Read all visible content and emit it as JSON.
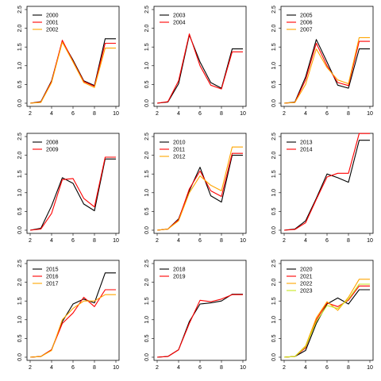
{
  "colors": {
    "line": [
      "#000000",
      "#ff0000",
      "#ffa500",
      "#c8e61e"
    ]
  },
  "chart_data": [
    {
      "type": "line",
      "title": "",
      "xlabel": "",
      "ylabel": "",
      "xlim": [
        2,
        10
      ],
      "ylim": [
        0,
        2.5
      ],
      "x_ticks": [
        2,
        4,
        6,
        8,
        10
      ],
      "y_ticks": [
        0.0,
        0.5,
        1.0,
        1.5,
        2.0,
        2.5
      ],
      "legend": "top-left",
      "grid": false,
      "x": [
        2,
        3,
        4,
        5,
        6,
        7,
        8,
        9,
        10
      ],
      "series": [
        {
          "name": "2000",
          "values": [
            0.0,
            0.04,
            0.6,
            1.65,
            1.15,
            0.6,
            0.47,
            1.72,
            1.72
          ]
        },
        {
          "name": "2001",
          "values": [
            0.0,
            0.03,
            0.58,
            1.68,
            1.12,
            0.58,
            0.45,
            1.6,
            1.6
          ]
        },
        {
          "name": "2002",
          "values": [
            0.0,
            0.02,
            0.55,
            1.63,
            1.1,
            0.55,
            0.42,
            1.47,
            1.47
          ]
        }
      ]
    },
    {
      "type": "line",
      "title": "",
      "xlabel": "",
      "ylabel": "",
      "xlim": [
        2,
        10
      ],
      "ylim": [
        0,
        2.5
      ],
      "x_ticks": [
        2,
        4,
        6,
        8,
        10
      ],
      "y_ticks": [
        0.0,
        0.5,
        1.0,
        1.5,
        2.0,
        2.5
      ],
      "legend": "top-left",
      "grid": false,
      "x": [
        2,
        3,
        4,
        5,
        6,
        7,
        8,
        9,
        10
      ],
      "series": [
        {
          "name": "2003",
          "values": [
            0.0,
            0.03,
            0.52,
            1.82,
            1.1,
            0.55,
            0.4,
            1.45,
            1.45
          ]
        },
        {
          "name": "2004",
          "values": [
            0.0,
            0.04,
            0.6,
            1.85,
            1.0,
            0.48,
            0.38,
            1.37,
            1.37
          ]
        }
      ]
    },
    {
      "type": "line",
      "title": "",
      "xlabel": "",
      "ylabel": "",
      "xlim": [
        2,
        10
      ],
      "ylim": [
        0,
        2.5
      ],
      "x_ticks": [
        2,
        4,
        6,
        8,
        10
      ],
      "y_ticks": [
        0.0,
        0.5,
        1.0,
        1.5,
        2.0,
        2.5
      ],
      "legend": "top-left",
      "grid": false,
      "x": [
        2,
        3,
        4,
        5,
        6,
        7,
        8,
        9,
        10
      ],
      "series": [
        {
          "name": "2005",
          "values": [
            0.0,
            0.03,
            0.7,
            1.7,
            1.1,
            0.48,
            0.4,
            1.45,
            1.45
          ]
        },
        {
          "name": "2006",
          "values": [
            0.0,
            0.02,
            0.62,
            1.6,
            1.0,
            0.55,
            0.47,
            1.65,
            1.65
          ]
        },
        {
          "name": "2007",
          "values": [
            0.0,
            0.02,
            0.5,
            1.45,
            0.95,
            0.62,
            0.52,
            1.75,
            1.75
          ]
        }
      ]
    },
    {
      "type": "line",
      "title": "",
      "xlabel": "",
      "ylabel": "",
      "xlim": [
        2,
        10
      ],
      "ylim": [
        0,
        2.5
      ],
      "x_ticks": [
        2,
        4,
        6,
        8,
        10
      ],
      "y_ticks": [
        0.0,
        0.5,
        1.0,
        1.5,
        2.0,
        2.5
      ],
      "legend": "top-left",
      "grid": false,
      "x": [
        2,
        3,
        4,
        5,
        6,
        7,
        8,
        9,
        10
      ],
      "series": [
        {
          "name": "2008",
          "values": [
            0.0,
            0.05,
            0.65,
            1.4,
            1.25,
            0.7,
            0.52,
            1.9,
            1.9
          ]
        },
        {
          "name": "2009",
          "values": [
            0.0,
            0.03,
            0.45,
            1.35,
            1.38,
            0.85,
            0.62,
            1.95,
            1.95
          ]
        }
      ]
    },
    {
      "type": "line",
      "title": "",
      "xlabel": "",
      "ylabel": "",
      "xlim": [
        2,
        10
      ],
      "ylim": [
        0,
        2.5
      ],
      "x_ticks": [
        2,
        4,
        6,
        8,
        10
      ],
      "y_ticks": [
        0.0,
        0.5,
        1.0,
        1.5,
        2.0,
        2.5
      ],
      "legend": "top-left",
      "grid": false,
      "x": [
        2,
        3,
        4,
        5,
        6,
        7,
        8,
        9,
        10
      ],
      "series": [
        {
          "name": "2010",
          "values": [
            0.0,
            0.03,
            0.3,
            1.05,
            1.68,
            0.92,
            0.75,
            2.0,
            2.0
          ]
        },
        {
          "name": "2011",
          "values": [
            0.0,
            0.03,
            0.28,
            1.1,
            1.58,
            1.05,
            0.9,
            2.05,
            2.05
          ]
        },
        {
          "name": "2012",
          "values": [
            0.0,
            0.03,
            0.25,
            1.0,
            1.45,
            1.2,
            1.05,
            2.22,
            2.22
          ]
        }
      ]
    },
    {
      "type": "line",
      "title": "",
      "xlabel": "",
      "ylabel": "",
      "xlim": [
        2,
        10
      ],
      "ylim": [
        0,
        2.5
      ],
      "x_ticks": [
        2,
        4,
        6,
        8,
        10
      ],
      "y_ticks": [
        0.0,
        0.5,
        1.0,
        1.5,
        2.0,
        2.5
      ],
      "legend": "top-left",
      "grid": false,
      "x": [
        2,
        3,
        4,
        5,
        6,
        7,
        8,
        9,
        10
      ],
      "series": [
        {
          "name": "2013",
          "values": [
            0.0,
            0.03,
            0.25,
            0.85,
            1.5,
            1.4,
            1.28,
            2.4,
            2.4
          ]
        },
        {
          "name": "2014",
          "values": [
            0.0,
            0.02,
            0.2,
            0.82,
            1.42,
            1.52,
            1.52,
            2.58,
            2.58
          ]
        }
      ]
    },
    {
      "type": "line",
      "title": "",
      "xlabel": "",
      "ylabel": "",
      "xlim": [
        2,
        10
      ],
      "ylim": [
        0,
        2.5
      ],
      "x_ticks": [
        2,
        4,
        6,
        8,
        10
      ],
      "y_ticks": [
        0.0,
        0.5,
        1.0,
        1.5,
        2.0,
        2.5
      ],
      "legend": "top-left",
      "grid": false,
      "x": [
        2,
        3,
        4,
        5,
        6,
        7,
        8,
        9,
        10
      ],
      "series": [
        {
          "name": "2015",
          "values": [
            0.0,
            0.02,
            0.2,
            0.95,
            1.42,
            1.55,
            1.45,
            2.25,
            2.25
          ]
        },
        {
          "name": "2016",
          "values": [
            0.0,
            0.02,
            0.2,
            0.9,
            1.18,
            1.6,
            1.35,
            1.8,
            1.8
          ]
        },
        {
          "name": "2017",
          "values": [
            0.0,
            0.02,
            0.18,
            1.0,
            1.3,
            1.5,
            1.5,
            1.67,
            1.67
          ]
        }
      ]
    },
    {
      "type": "line",
      "title": "",
      "xlabel": "",
      "ylabel": "",
      "xlim": [
        2,
        10
      ],
      "ylim": [
        0,
        2.5
      ],
      "x_ticks": [
        2,
        4,
        6,
        8,
        10
      ],
      "y_ticks": [
        0.0,
        0.5,
        1.0,
        1.5,
        2.0,
        2.5
      ],
      "legend": "top-left",
      "grid": false,
      "x": [
        2,
        3,
        4,
        5,
        6,
        7,
        8,
        9,
        10
      ],
      "series": [
        {
          "name": "2018",
          "values": [
            0.0,
            0.02,
            0.2,
            0.95,
            1.42,
            1.45,
            1.5,
            1.68,
            1.68
          ]
        },
        {
          "name": "2019",
          "values": [
            0.0,
            0.02,
            0.2,
            0.9,
            1.52,
            1.48,
            1.55,
            1.67,
            1.67
          ]
        }
      ]
    },
    {
      "type": "line",
      "title": "",
      "xlabel": "",
      "ylabel": "",
      "xlim": [
        2,
        10
      ],
      "ylim": [
        0,
        2.5
      ],
      "x_ticks": [
        2,
        4,
        6,
        8,
        10
      ],
      "y_ticks": [
        0.0,
        0.5,
        1.0,
        1.5,
        2.0,
        2.5
      ],
      "legend": "top-left",
      "grid": false,
      "x": [
        2,
        3,
        4,
        5,
        6,
        7,
        8,
        9,
        10
      ],
      "series": [
        {
          "name": "2020",
          "values": [
            0.0,
            0.02,
            0.18,
            0.9,
            1.42,
            1.58,
            1.42,
            1.8,
            1.8
          ]
        },
        {
          "name": "2021",
          "values": [
            0.0,
            0.02,
            0.25,
            1.0,
            1.45,
            1.35,
            1.52,
            1.9,
            1.9
          ]
        },
        {
          "name": "2022",
          "values": [
            0.0,
            0.02,
            0.3,
            1.05,
            1.48,
            1.25,
            1.6,
            2.08,
            2.08
          ]
        },
        {
          "name": "2023",
          "values": [
            0.0,
            0.02,
            0.28,
            0.95,
            1.38,
            1.3,
            1.55,
            1.95,
            1.95
          ]
        }
      ]
    }
  ]
}
